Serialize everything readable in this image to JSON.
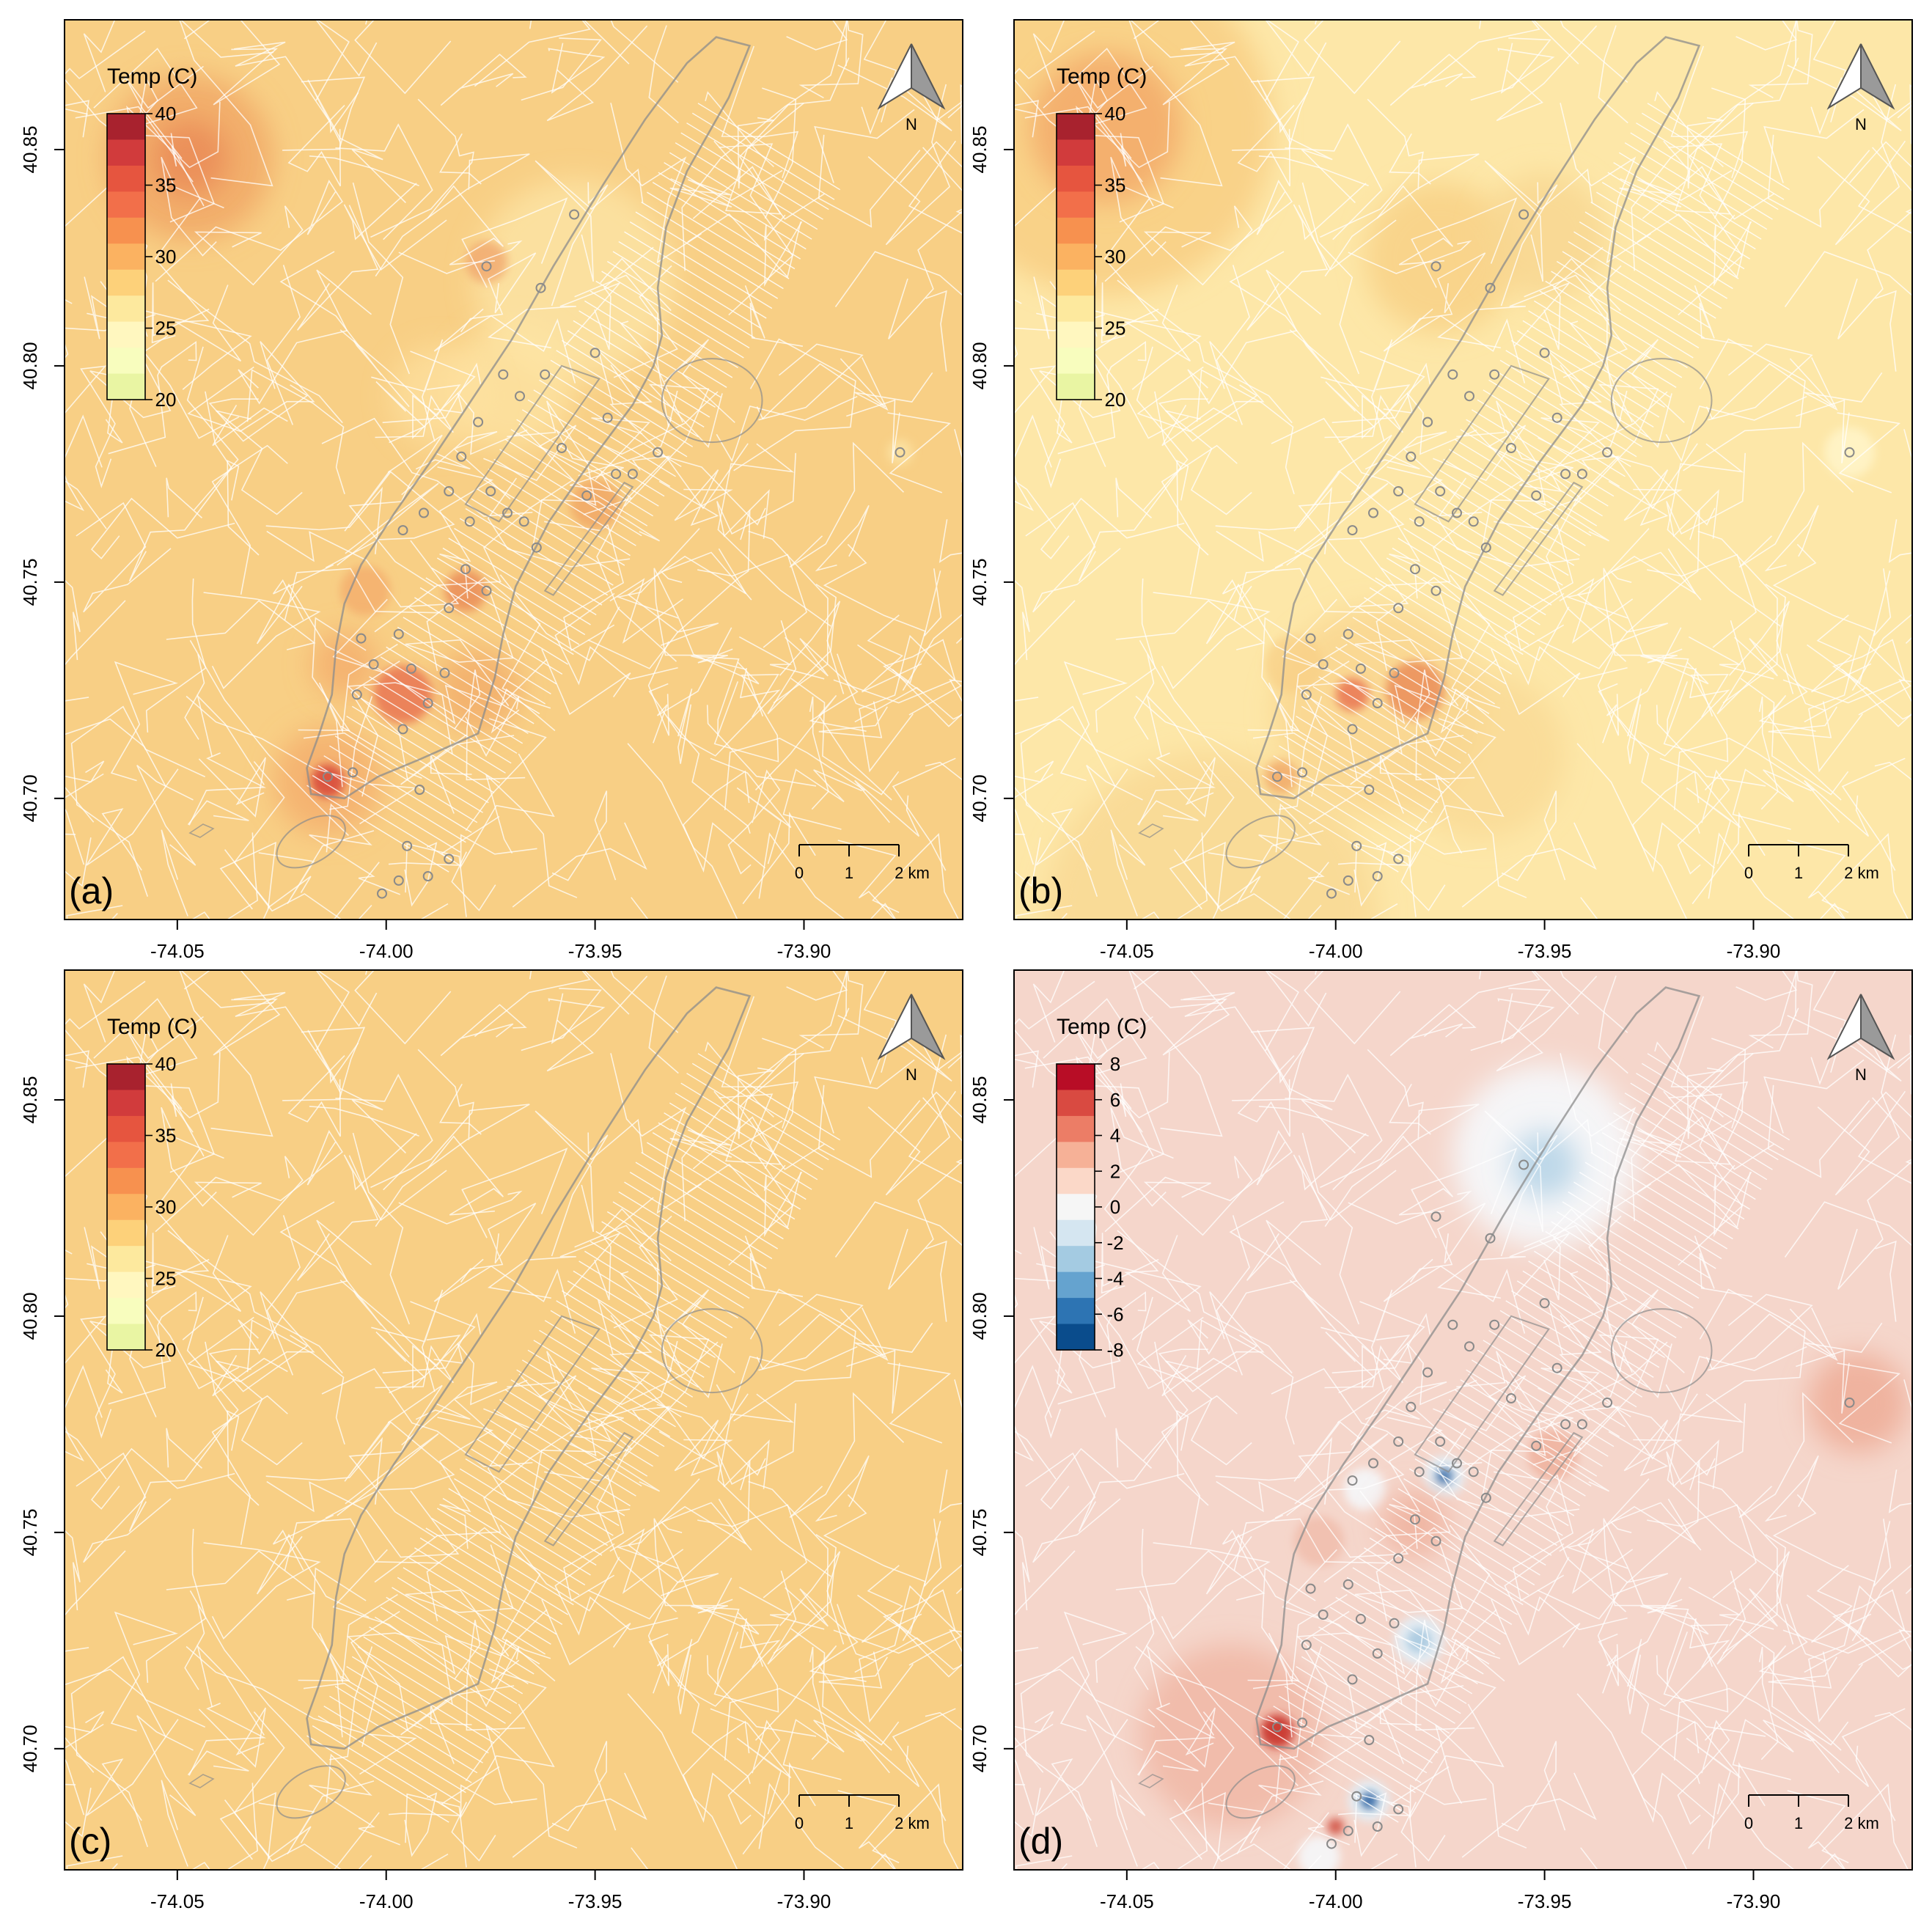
{
  "figure": {
    "x_axis": {
      "ticks": [
        {
          "value": -74.05,
          "label": "-74.05"
        },
        {
          "value": -74.0,
          "label": "-74.00"
        },
        {
          "value": -73.95,
          "label": "-73.95"
        },
        {
          "value": -73.9,
          "label": "-73.90"
        }
      ],
      "range": [
        -74.077,
        -73.862
      ]
    },
    "y_axis": {
      "ticks": [
        {
          "value": 40.7,
          "label": "40.70"
        },
        {
          "value": 40.75,
          "label": "40.75"
        },
        {
          "value": 40.8,
          "label": "40.80"
        },
        {
          "value": 40.85,
          "label": "40.85"
        }
      ],
      "range": [
        40.672,
        40.88
      ]
    },
    "north_arrow_label": "N",
    "scale_bar": {
      "labels": [
        "0",
        "1",
        "2 km"
      ],
      "values_km": [
        0,
        1,
        2
      ]
    },
    "panels": [
      {
        "id": "a",
        "label": "(a)",
        "legend": {
          "title": "Temp (C)",
          "min": 20,
          "max": 40,
          "tick_labels": [
            "40",
            "35",
            "30",
            "25",
            "20"
          ],
          "palette": "warm"
        },
        "background": "#f8cf85",
        "show_stations": true,
        "hotspots": [
          {
            "lon": -74.047,
            "lat": 40.848,
            "r": 0.02,
            "color": "#f0a060",
            "opacity": 0.7
          },
          {
            "lon": -74.047,
            "lat": 40.848,
            "r": 0.009,
            "color": "#ea8a55",
            "opacity": 0.8
          },
          {
            "lon": -73.955,
            "lat": 40.82,
            "r": 0.024,
            "color": "#fde5a5",
            "opacity": 0.8
          },
          {
            "lon": -73.97,
            "lat": 40.795,
            "r": 0.015,
            "color": "#fde5a5",
            "opacity": 0.7
          },
          {
            "lon": -73.976,
            "lat": 40.824,
            "r": 0.005,
            "color": "#f0a068",
            "opacity": 0.7
          },
          {
            "lon": -73.987,
            "lat": 40.793,
            "r": 0.012,
            "color": "#fde1a0",
            "opacity": 0.7
          },
          {
            "lon": -74.01,
            "lat": 40.731,
            "r": 0.008,
            "color": "#f3a868",
            "opacity": 0.7
          },
          {
            "lon": -74.005,
            "lat": 40.748,
            "r": 0.006,
            "color": "#f3a868",
            "opacity": 0.7
          },
          {
            "lon": -73.981,
            "lat": 40.748,
            "r": 0.005,
            "color": "#ea8a55",
            "opacity": 0.8
          },
          {
            "lon": -73.978,
            "lat": 40.725,
            "r": 0.01,
            "color": "#f0a060",
            "opacity": 0.6
          },
          {
            "lon": -73.996,
            "lat": 40.724,
            "r": 0.007,
            "color": "#e87050",
            "opacity": 0.8
          },
          {
            "lon": -73.95,
            "lat": 40.768,
            "r": 0.006,
            "color": "#f0a060",
            "opacity": 0.7
          },
          {
            "lon": -74.014,
            "lat": 40.704,
            "r": 0.013,
            "color": "#f3a868",
            "opacity": 0.7
          },
          {
            "lon": -74.014,
            "lat": 40.704,
            "r": 0.004,
            "color": "#d84a3a",
            "opacity": 0.9
          },
          {
            "lon": -73.877,
            "lat": 40.78,
            "r": 0.003,
            "color": "#fde5a5",
            "opacity": 0.8
          }
        ]
      },
      {
        "id": "b",
        "label": "(b)",
        "legend": {
          "title": "Temp (C)",
          "min": 20,
          "max": 40,
          "tick_labels": [
            "40",
            "35",
            "30",
            "25",
            "20"
          ],
          "palette": "warm"
        },
        "background": "#fde7a8",
        "show_stations": true,
        "hotspots": [
          {
            "lon": -74.055,
            "lat": 40.855,
            "r": 0.04,
            "color": "#f8cf85",
            "opacity": 0.9
          },
          {
            "lon": -74.055,
            "lat": 40.855,
            "r": 0.018,
            "color": "#f3a868",
            "opacity": 0.8
          },
          {
            "lon": -73.975,
            "lat": 40.825,
            "r": 0.018,
            "color": "#f8cf85",
            "opacity": 0.8
          },
          {
            "lon": -73.95,
            "lat": 40.83,
            "r": 0.015,
            "color": "#f8d690",
            "opacity": 0.8
          },
          {
            "lon": -73.99,
            "lat": 40.72,
            "r": 0.025,
            "color": "#f8cf85",
            "opacity": 0.6
          },
          {
            "lon": -73.965,
            "lat": 40.71,
            "r": 0.02,
            "color": "#f8d690",
            "opacity": 0.6
          },
          {
            "lon": -74.03,
            "lat": 40.672,
            "r": 0.04,
            "color": "#f8d690",
            "opacity": 0.7
          },
          {
            "lon": -73.981,
            "lat": 40.725,
            "r": 0.007,
            "color": "#ea8a55",
            "opacity": 0.8
          },
          {
            "lon": -73.996,
            "lat": 40.724,
            "r": 0.004,
            "color": "#e87050",
            "opacity": 0.8
          },
          {
            "lon": -74.013,
            "lat": 40.705,
            "r": 0.004,
            "color": "#f0a060",
            "opacity": 0.7
          },
          {
            "lon": -74.01,
            "lat": 40.731,
            "r": 0.007,
            "color": "#f8cf85",
            "opacity": 0.7
          },
          {
            "lon": -73.877,
            "lat": 40.78,
            "r": 0.006,
            "color": "#fff4c8",
            "opacity": 0.9
          }
        ]
      },
      {
        "id": "c",
        "label": "(c)",
        "legend": {
          "title": "Temp (C)",
          "min": 20,
          "max": 40,
          "tick_labels": [
            "40",
            "35",
            "30",
            "25",
            "20"
          ],
          "palette": "warm"
        },
        "background": "#f8cf85",
        "show_stations": false,
        "hotspots": []
      },
      {
        "id": "d",
        "label": "(d)",
        "legend": {
          "title": "Temp (C)",
          "min": -8,
          "max": 8,
          "tick_labels": [
            "8",
            "6",
            "4",
            "2",
            "0",
            "-2",
            "-4",
            "-6",
            "-8"
          ],
          "palette": "diverging"
        },
        "background": "#f5d6cb",
        "show_stations": true,
        "hotspots": [
          {
            "lon": -73.95,
            "lat": 40.837,
            "r": 0.022,
            "color": "#f5f7f9",
            "opacity": 0.95
          },
          {
            "lon": -73.95,
            "lat": 40.835,
            "r": 0.008,
            "color": "#b8d5e8",
            "opacity": 0.9
          },
          {
            "lon": -73.875,
            "lat": 40.78,
            "r": 0.012,
            "color": "#eeaa94",
            "opacity": 0.8
          },
          {
            "lon": -74.025,
            "lat": 40.703,
            "r": 0.022,
            "color": "#eeaa94",
            "opacity": 0.6
          },
          {
            "lon": -74.014,
            "lat": 40.704,
            "r": 0.004,
            "color": "#c8302a",
            "opacity": 0.9
          },
          {
            "lon": -73.98,
            "lat": 40.725,
            "r": 0.006,
            "color": "#e3eef6",
            "opacity": 0.9
          },
          {
            "lon": -73.98,
            "lat": 40.725,
            "r": 0.003,
            "color": "#a8cae0",
            "opacity": 0.9
          },
          {
            "lon": -73.974,
            "lat": 40.763,
            "r": 0.005,
            "color": "#e3eef6",
            "opacity": 0.9
          },
          {
            "lon": -73.974,
            "lat": 40.763,
            "r": 0.002,
            "color": "#3a6fa8",
            "opacity": 0.9
          },
          {
            "lon": -73.993,
            "lat": 40.76,
            "r": 0.005,
            "color": "#f5f7f9",
            "opacity": 0.9
          },
          {
            "lon": -73.992,
            "lat": 40.688,
            "r": 0.005,
            "color": "#e3eef6",
            "opacity": 0.9
          },
          {
            "lon": -73.992,
            "lat": 40.688,
            "r": 0.002,
            "color": "#1d5a9c",
            "opacity": 0.9
          },
          {
            "lon": -74.004,
            "lat": 40.675,
            "r": 0.005,
            "color": "#f5f7f9",
            "opacity": 0.9
          },
          {
            "lon": -73.981,
            "lat": 40.752,
            "r": 0.008,
            "color": "#eeaa94",
            "opacity": 0.7
          },
          {
            "lon": -73.948,
            "lat": 40.768,
            "r": 0.006,
            "color": "#eeaa94",
            "opacity": 0.7
          },
          {
            "lon": -74.0,
            "lat": 40.682,
            "r": 0.002,
            "color": "#d05040",
            "opacity": 0.9
          },
          {
            "lon": -74.004,
            "lat": 40.748,
            "r": 0.006,
            "color": "#efb8a5",
            "opacity": 0.7
          }
        ]
      }
    ],
    "stations": [
      {
        "lon": -73.955,
        "lat": 40.835
      },
      {
        "lon": -73.976,
        "lat": 40.823
      },
      {
        "lon": -73.963,
        "lat": 40.818
      },
      {
        "lon": -73.972,
        "lat": 40.798
      },
      {
        "lon": -73.968,
        "lat": 40.793
      },
      {
        "lon": -73.962,
        "lat": 40.798
      },
      {
        "lon": -73.95,
        "lat": 40.803
      },
      {
        "lon": -73.947,
        "lat": 40.788
      },
      {
        "lon": -73.958,
        "lat": 40.781
      },
      {
        "lon": -73.945,
        "lat": 40.775
      },
      {
        "lon": -73.935,
        "lat": 40.78
      },
      {
        "lon": -73.978,
        "lat": 40.787
      },
      {
        "lon": -73.982,
        "lat": 40.779
      },
      {
        "lon": -73.975,
        "lat": 40.771
      },
      {
        "lon": -73.985,
        "lat": 40.771
      },
      {
        "lon": -73.991,
        "lat": 40.766
      },
      {
        "lon": -73.98,
        "lat": 40.764
      },
      {
        "lon": -73.971,
        "lat": 40.766
      },
      {
        "lon": -73.967,
        "lat": 40.764
      },
      {
        "lon": -73.964,
        "lat": 40.758
      },
      {
        "lon": -73.996,
        "lat": 40.762
      },
      {
        "lon": -73.981,
        "lat": 40.753
      },
      {
        "lon": -73.976,
        "lat": 40.748
      },
      {
        "lon": -73.985,
        "lat": 40.744
      },
      {
        "lon": -73.997,
        "lat": 40.738
      },
      {
        "lon": -74.006,
        "lat": 40.737
      },
      {
        "lon": -74.003,
        "lat": 40.731
      },
      {
        "lon": -73.994,
        "lat": 40.73
      },
      {
        "lon": -73.986,
        "lat": 40.729
      },
      {
        "lon": -73.99,
        "lat": 40.722
      },
      {
        "lon": -74.007,
        "lat": 40.724
      },
      {
        "lon": -73.996,
        "lat": 40.716
      },
      {
        "lon": -74.008,
        "lat": 40.706
      },
      {
        "lon": -74.014,
        "lat": 40.705
      },
      {
        "lon": -73.992,
        "lat": 40.702
      },
      {
        "lon": -73.995,
        "lat": 40.689
      },
      {
        "lon": -73.985,
        "lat": 40.686
      },
      {
        "lon": -73.99,
        "lat": 40.682
      },
      {
        "lon": -73.997,
        "lat": 40.681
      },
      {
        "lon": -74.001,
        "lat": 40.678
      },
      {
        "lon": -73.877,
        "lat": 40.78
      },
      {
        "lon": -73.952,
        "lat": 40.77
      },
      {
        "lon": -73.941,
        "lat": 40.775
      }
    ]
  }
}
